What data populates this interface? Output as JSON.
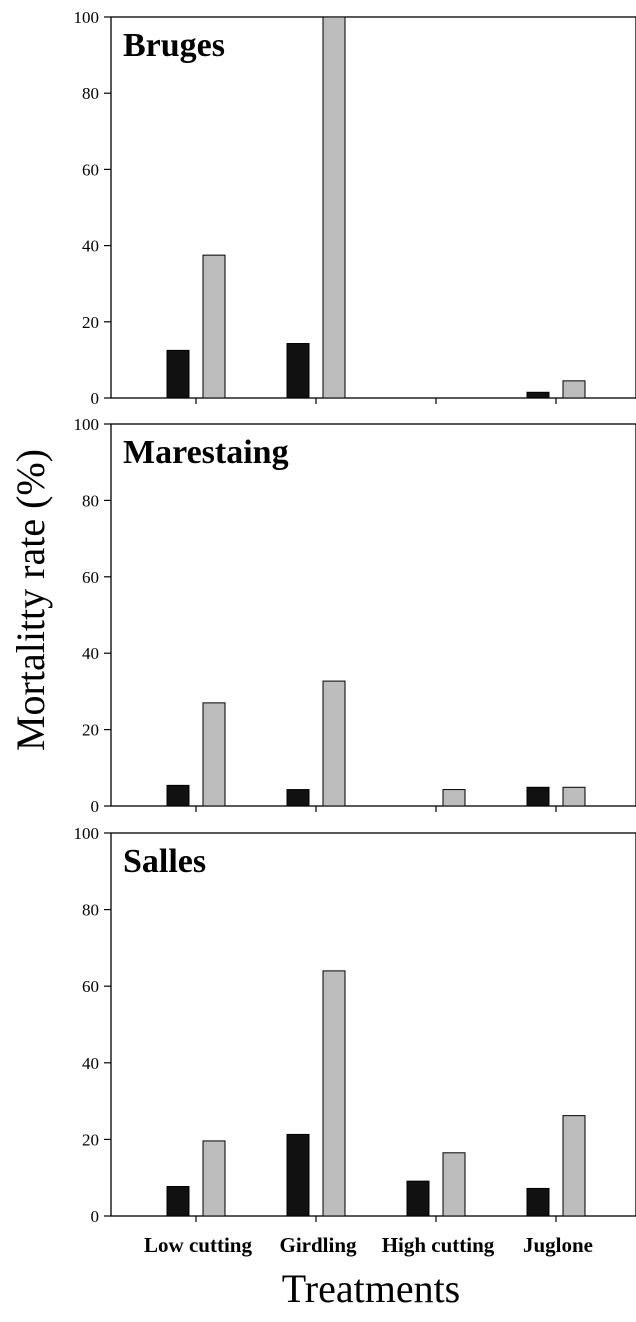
{
  "chart_data": {
    "type": "bar",
    "ylabel": "Mortalitty rate (%)",
    "xlabel": "Treatments",
    "categories": [
      "Low cutting",
      "Girdling",
      "High cutting",
      "Juglone"
    ],
    "ylim": [
      0,
      100
    ],
    "yticks": [
      0,
      20,
      40,
      60,
      80,
      100
    ],
    "colors": {
      "series1": "#111111",
      "series2": "#bdbdbd"
    },
    "panels": [
      {
        "title": "Bruges",
        "series": [
          {
            "values": [
              12.5,
              14.3,
              0,
              1.5
            ]
          },
          {
            "values": [
              37.5,
              100,
              0,
              4.5
            ]
          }
        ]
      },
      {
        "title": "Marestaing",
        "series": [
          {
            "values": [
              5.4,
              4.3,
              0,
              4.9
            ]
          },
          {
            "values": [
              27.0,
              32.7,
              4.3,
              4.9
            ]
          }
        ]
      },
      {
        "title": "Salles",
        "series": [
          {
            "values": [
              7.7,
              21.3,
              9.1,
              7.2
            ]
          },
          {
            "values": [
              19.6,
              64.0,
              16.5,
              26.2
            ]
          }
        ]
      }
    ]
  }
}
